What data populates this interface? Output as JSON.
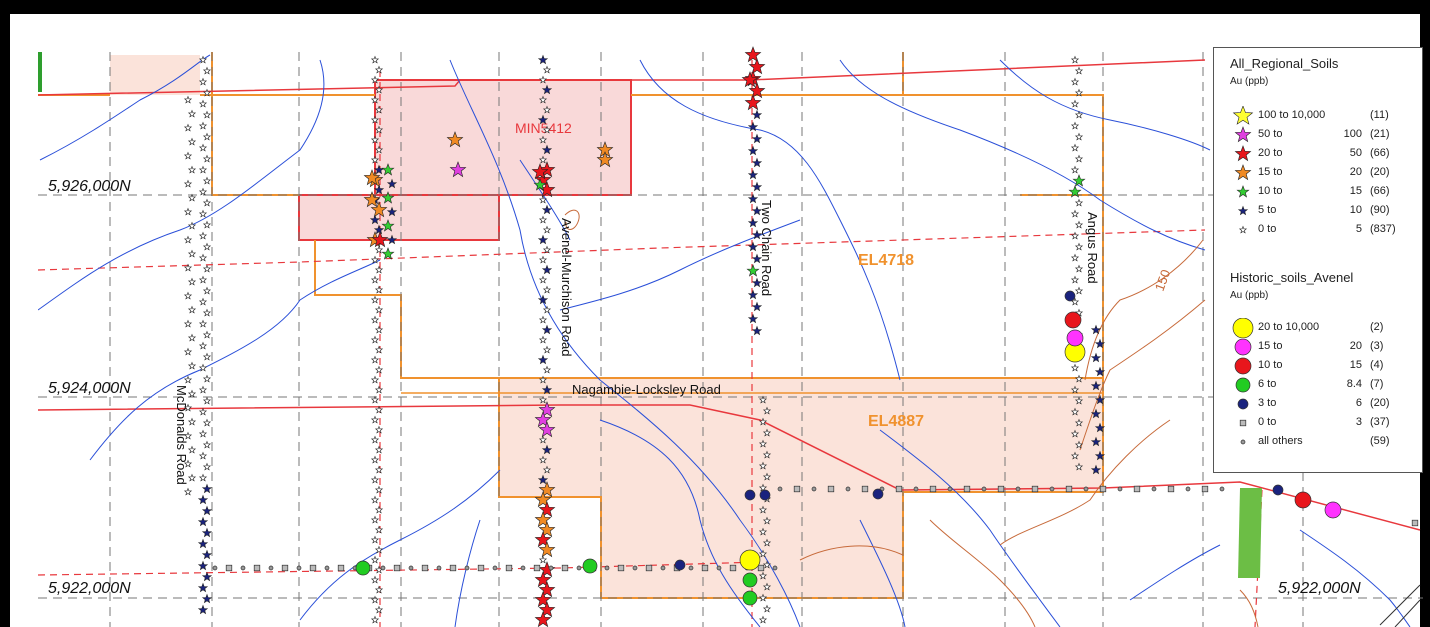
{
  "map": {
    "northings": [
      {
        "label": "5,926,000N"
      },
      {
        "label": "5,924,000N"
      },
      {
        "label": "5,922,000N"
      },
      {
        "label": "5,922,000N"
      }
    ],
    "tenements": [
      {
        "label": "MIN5412",
        "color": "#e8383d"
      },
      {
        "label": "EL4718",
        "color": "#f0922e"
      },
      {
        "label": "EL4887",
        "color": "#f0922e"
      }
    ],
    "roads": [
      {
        "label": "McDonalds Road"
      },
      {
        "label": "Avenel-Murchison Road"
      },
      {
        "label": "Two Chain Road"
      },
      {
        "label": "Angus Road"
      },
      {
        "label": "Nagambie-Locksley Road"
      }
    ],
    "contour_label": "150"
  },
  "legend": {
    "regional": {
      "title": "All_Regional_Soils",
      "unit": "Au (ppb)",
      "rows": [
        {
          "from": "100 to 10,000",
          "to": "",
          "count": "(11)",
          "color": "#ffff33",
          "size": "xl",
          "icon": "star"
        },
        {
          "from": "50 to",
          "to": "100",
          "count": "(21)",
          "color": "#e040e0",
          "size": "lg",
          "icon": "star"
        },
        {
          "from": "20 to",
          "to": "50",
          "count": "(66)",
          "color": "#e8161c",
          "size": "lg",
          "icon": "star"
        },
        {
          "from": "15 to",
          "to": "20",
          "count": "(20)",
          "color": "#f08a24",
          "size": "lg",
          "icon": "star"
        },
        {
          "from": "10 to",
          "to": "15",
          "count": "(66)",
          "color": "#33cc33",
          "size": "md",
          "icon": "star"
        },
        {
          "from": "5 to",
          "to": "10",
          "count": "(90)",
          "color": "#1a237e",
          "size": "sm",
          "icon": "star"
        },
        {
          "from": "0 to",
          "to": "5",
          "count": "(837)",
          "color": "#ffffff",
          "size": "xs",
          "icon": "star"
        }
      ]
    },
    "historic": {
      "title": "Historic_soils_Avenel",
      "unit": "Au (ppb)",
      "rows": [
        {
          "from": "20 to 10,000",
          "to": "",
          "count": "(2)",
          "color": "#ffff00",
          "size": "xl",
          "icon": "circle"
        },
        {
          "from": "15 to",
          "to": "20",
          "count": "(3)",
          "color": "#ff33ff",
          "size": "lg",
          "icon": "circle"
        },
        {
          "from": "10 to",
          "to": "15",
          "count": "(4)",
          "color": "#e8161c",
          "size": "lg",
          "icon": "circle"
        },
        {
          "from": "6 to",
          "to": "8.4",
          "count": "(7)",
          "color": "#22cc22",
          "size": "md",
          "icon": "circle"
        },
        {
          "from": "3 to",
          "to": "6",
          "count": "(20)",
          "color": "#1a237e",
          "size": "sm",
          "icon": "circle"
        },
        {
          "from": "0 to",
          "to": "3",
          "count": "(37)",
          "color": "#bbbbbb",
          "size": "xs",
          "icon": "square"
        },
        {
          "from": "all others",
          "to": "",
          "count": "(59)",
          "color": "#999999",
          "size": "xxs",
          "icon": "circle"
        }
      ]
    }
  }
}
